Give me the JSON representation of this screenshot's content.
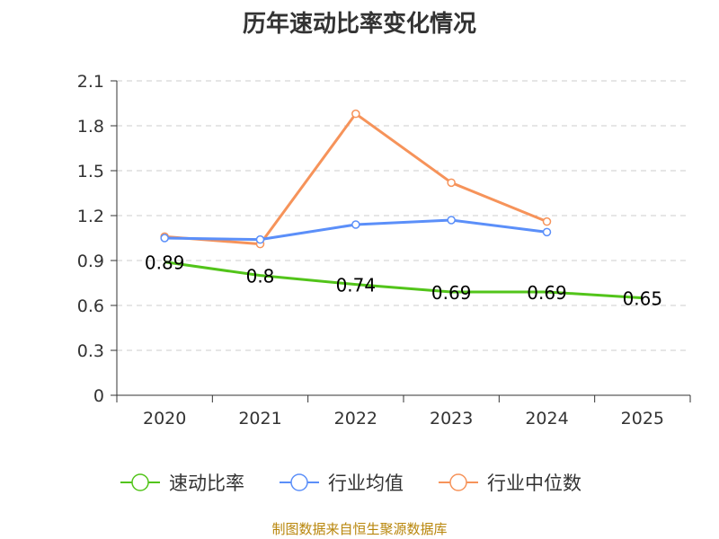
{
  "chart_data": {
    "type": "line",
    "title": "历年速动比率变化情况",
    "categories": [
      "2020",
      "2021",
      "2022",
      "2023",
      "2024",
      "2025"
    ],
    "ylim": [
      0,
      2.1
    ],
    "yticks": [
      "0",
      "0.3",
      "0.6",
      "0.9",
      "1.2",
      "1.5",
      "1.8",
      "2.1"
    ],
    "grid": true,
    "legend_position": "bottom",
    "series": [
      {
        "name": "速动比率",
        "color": "#52c41a",
        "values": [
          0.89,
          0.8,
          0.74,
          0.69,
          0.69,
          0.65
        ],
        "labels": [
          "0.89",
          "0.8",
          "0.74",
          "0.69",
          "0.69",
          "0.65"
        ]
      },
      {
        "name": "行业均值",
        "color": "#5b8ff9",
        "values": [
          1.05,
          1.04,
          1.14,
          1.17,
          1.09,
          null
        ]
      },
      {
        "name": "行业中位数",
        "color": "#f6935a",
        "values": [
          1.06,
          1.01,
          1.88,
          1.42,
          1.16,
          null
        ]
      }
    ]
  },
  "source": "制图数据来自恒生聚源数据库"
}
